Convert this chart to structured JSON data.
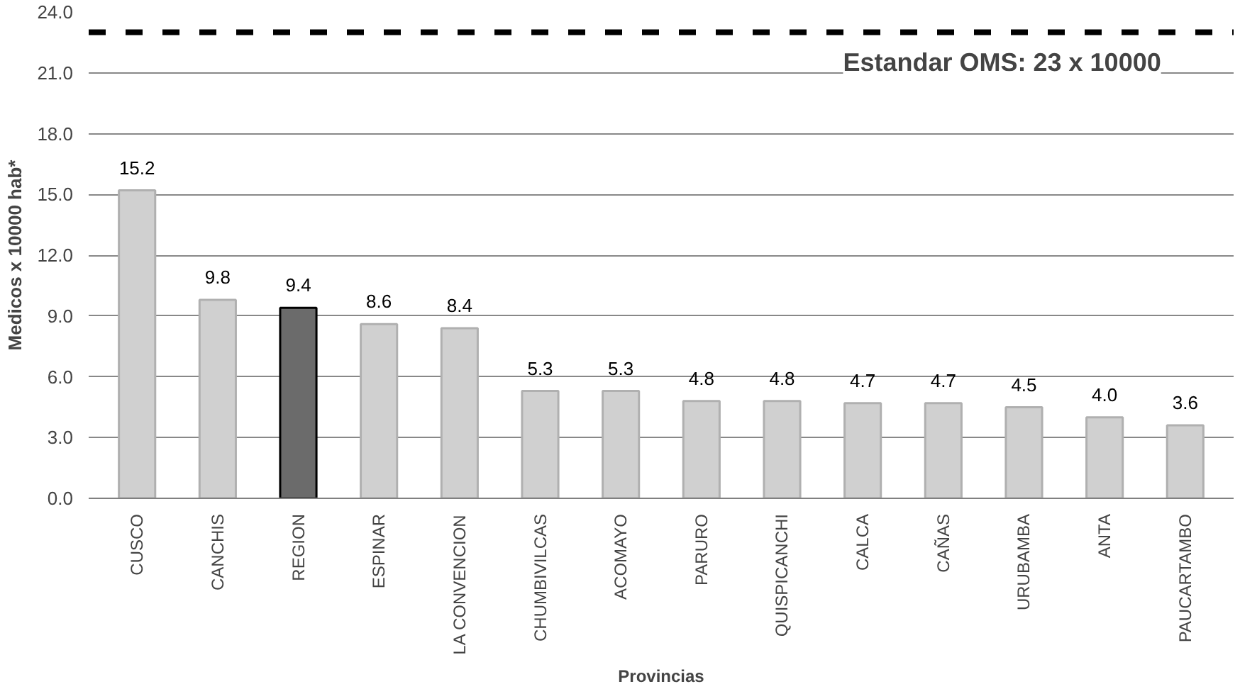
{
  "chart_data": {
    "type": "bar",
    "xlabel": "Provincias",
    "ylabel": "Medicos x 10000 hab*",
    "categories": [
      "CUSCO",
      "CANCHIS",
      "REGION",
      "ESPINAR",
      "LA CONVENCION",
      "CHUMBIVILCAS",
      "ACOMAYO",
      "PARURO",
      "QUISPICANCHI",
      "CALCA",
      "CAÑAS",
      "URUBAMBA",
      "ANTA",
      "PAUCARTAMBO"
    ],
    "values": [
      15.2,
      9.8,
      9.4,
      8.6,
      8.4,
      5.3,
      5.3,
      4.8,
      4.8,
      4.7,
      4.7,
      4.5,
      4.0,
      3.6
    ],
    "colors": [
      "#d0d0d0",
      "#d0d0d0",
      "#6b6b6b",
      "#d0d0d0",
      "#d0d0d0",
      "#d0d0d0",
      "#d0d0d0",
      "#d0d0d0",
      "#d0d0d0",
      "#d0d0d0",
      "#d0d0d0",
      "#d0d0d0",
      "#d0d0d0",
      "#d0d0d0"
    ],
    "value_labels": [
      "15.2",
      "9.8",
      "9.4",
      "8.6",
      "8.4",
      "5.3",
      "5.3",
      "4.8",
      "4.8",
      "4.7",
      "4.7",
      "4.5",
      "4.0",
      "3.6"
    ],
    "grid": "y",
    "ylim": [
      0,
      24
    ],
    "yticks": [
      {
        "value": 0,
        "label": "0.0"
      },
      {
        "value": 3,
        "label": "3.0"
      },
      {
        "value": 6,
        "label": "6.0"
      },
      {
        "value": 9,
        "label": "9.0"
      },
      {
        "value": 12,
        "label": "12.0"
      },
      {
        "value": 15,
        "label": "15.0"
      },
      {
        "value": 18,
        "label": "18.0"
      },
      {
        "value": 21,
        "label": "21.0"
      },
      {
        "value": 24,
        "label": "24.0"
      }
    ],
    "ref_lines": [
      {
        "axis": "y",
        "value": 23,
        "label": "Estandar OMS: 23 x 10000",
        "color": "#000000",
        "line_style": "dashed"
      }
    ]
  }
}
